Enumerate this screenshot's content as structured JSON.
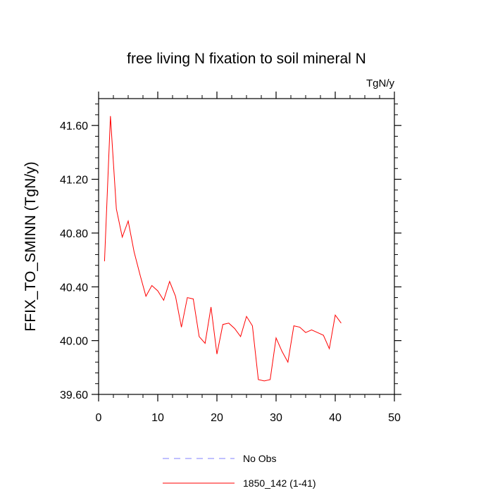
{
  "chart_data": {
    "type": "line",
    "title": "free living N fixation to soil mineral N",
    "units": "TgN/y",
    "xlabel": "",
    "ylabel": "FFIX_TO_SMINN  (TgN/y)",
    "xlim": [
      0,
      50
    ],
    "ylim": [
      39.6,
      41.8
    ],
    "xticks": [
      0,
      10,
      20,
      30,
      40,
      50
    ],
    "xtick_labels": [
      "0",
      "10",
      "20",
      "30",
      "40",
      "50"
    ],
    "yticks": [
      39.6,
      40.0,
      40.4,
      40.8,
      41.2,
      41.6
    ],
    "ytick_labels": [
      "39.60",
      "40.00",
      "40.40",
      "40.80",
      "41.20",
      "41.60"
    ],
    "grid": false,
    "legend_position": "bottom",
    "series": [
      {
        "name": "No Obs",
        "color": "#8080ff",
        "style": "dashed",
        "x": [],
        "values": []
      },
      {
        "name": "1850_142 (1-41)",
        "color": "#ff0000",
        "style": "solid",
        "x": [
          1,
          2,
          3,
          4,
          5,
          6,
          7,
          8,
          9,
          10,
          11,
          12,
          13,
          14,
          15,
          16,
          17,
          18,
          19,
          20,
          21,
          22,
          23,
          24,
          25,
          26,
          27,
          28,
          29,
          30,
          31,
          32,
          33,
          34,
          35,
          36,
          37,
          38,
          39,
          40,
          41
        ],
        "values": [
          40.59,
          41.67,
          40.98,
          40.77,
          40.89,
          40.66,
          40.49,
          40.33,
          40.41,
          40.37,
          40.3,
          40.44,
          40.33,
          40.1,
          40.32,
          40.31,
          40.03,
          39.98,
          40.25,
          39.9,
          40.12,
          40.13,
          40.09,
          40.03,
          40.18,
          40.11,
          39.71,
          39.7,
          39.71,
          40.02,
          39.92,
          39.84,
          40.11,
          40.1,
          40.06,
          40.08,
          40.06,
          40.04,
          39.94,
          40.19,
          40.13
        ]
      }
    ]
  }
}
